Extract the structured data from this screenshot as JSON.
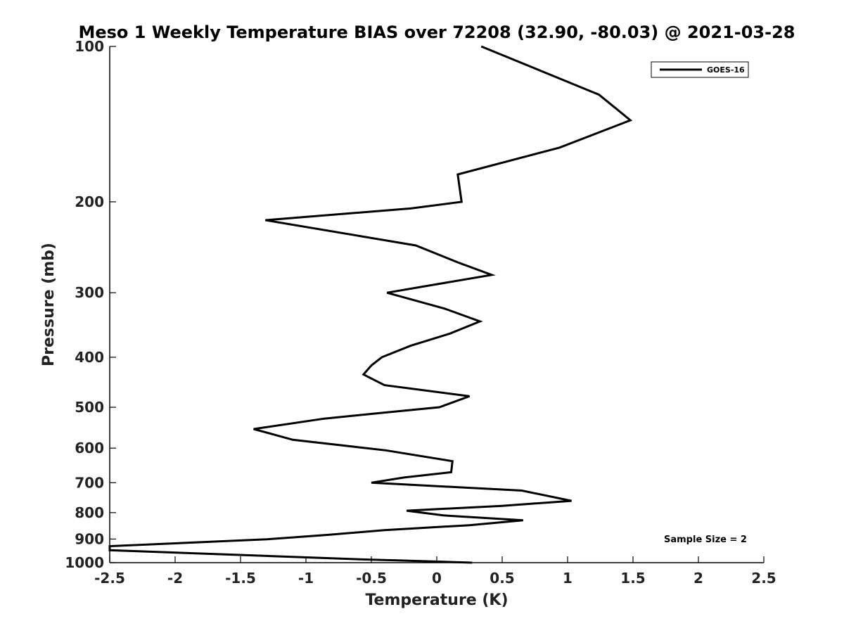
{
  "chart_data": {
    "type": "line",
    "title": "Meso 1 Weekly Temperature BIAS over 72208 (32.90, -80.03) @ 2021-03-28",
    "xlabel": "Temperature (K)",
    "ylabel": "Pressure (mb)",
    "xlim": [
      -2.5,
      2.5
    ],
    "ylim": [
      1000,
      100
    ],
    "y_scale": "log",
    "y_inverted": true,
    "xticks": [
      -2.5,
      -2,
      -1.5,
      -1,
      -0.5,
      0,
      0.5,
      1,
      1.5,
      2,
      2.5
    ],
    "xtick_labels": [
      "-2.5",
      "-2",
      "-1.5",
      "-1",
      "-0.5",
      "0",
      "0.5",
      "1",
      "1.5",
      "2",
      "2.5"
    ],
    "yticks": [
      100,
      200,
      300,
      400,
      500,
      600,
      700,
      800,
      900,
      1000
    ],
    "ytick_labels": [
      "100",
      "200",
      "300",
      "400",
      "500",
      "600",
      "700",
      "800",
      "900",
      "1000"
    ],
    "grid": false,
    "legend_position": "top-right",
    "annotation": "Sample Size = 2",
    "series": [
      {
        "name": "GOES-16",
        "color": "#000000",
        "points": [
          {
            "x": 0.27,
            "y": 1000
          },
          {
            "x": -0.3,
            "y": 990
          },
          {
            "x": -0.5,
            "y": 987
          },
          {
            "x": -2.5,
            "y": 946
          },
          {
            "x": -2.5,
            "y": 929
          },
          {
            "x": -1.3,
            "y": 901
          },
          {
            "x": -0.82,
            "y": 883
          },
          {
            "x": -0.4,
            "y": 865
          },
          {
            "x": 0.25,
            "y": 846
          },
          {
            "x": 0.66,
            "y": 828
          },
          {
            "x": 0.05,
            "y": 810
          },
          {
            "x": -0.23,
            "y": 793
          },
          {
            "x": 0.5,
            "y": 776
          },
          {
            "x": 1.03,
            "y": 759
          },
          {
            "x": 0.65,
            "y": 725
          },
          {
            "x": -0.5,
            "y": 700
          },
          {
            "x": -0.25,
            "y": 684
          },
          {
            "x": 0.11,
            "y": 668
          },
          {
            "x": 0.12,
            "y": 636
          },
          {
            "x": -0.39,
            "y": 606
          },
          {
            "x": -1.1,
            "y": 578
          },
          {
            "x": -1.4,
            "y": 551
          },
          {
            "x": -0.86,
            "y": 526
          },
          {
            "x": -0.4,
            "y": 512
          },
          {
            "x": 0.02,
            "y": 500
          },
          {
            "x": 0.25,
            "y": 476
          },
          {
            "x": -0.4,
            "y": 453
          },
          {
            "x": -0.56,
            "y": 432
          },
          {
            "x": -0.5,
            "y": 415
          },
          {
            "x": -0.42,
            "y": 400
          },
          {
            "x": -0.2,
            "y": 380
          },
          {
            "x": 0.1,
            "y": 360
          },
          {
            "x": 0.33,
            "y": 341
          },
          {
            "x": 0.06,
            "y": 322
          },
          {
            "x": -0.38,
            "y": 300
          },
          {
            "x": 0.42,
            "y": 277
          },
          {
            "x": 0.16,
            "y": 262
          },
          {
            "x": -0.16,
            "y": 243
          },
          {
            "x": -1.31,
            "y": 217
          },
          {
            "x": -0.2,
            "y": 206
          },
          {
            "x": 0.19,
            "y": 200
          },
          {
            "x": 0.16,
            "y": 177
          },
          {
            "x": 0.94,
            "y": 157
          },
          {
            "x": 1.48,
            "y": 139
          },
          {
            "x": 1.24,
            "y": 124
          },
          {
            "x": 0.34,
            "y": 100
          }
        ]
      }
    ]
  }
}
